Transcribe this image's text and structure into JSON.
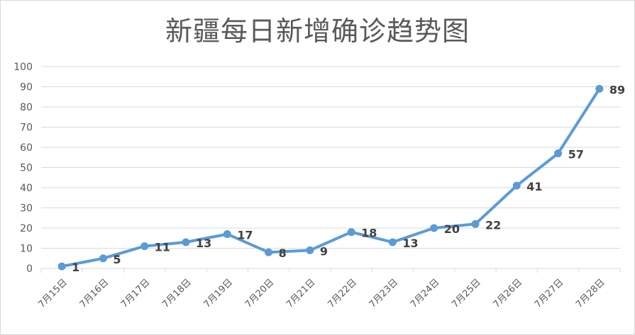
{
  "chart_data": {
    "type": "line",
    "title": "新疆每日新增确诊趋势图",
    "xlabel": "",
    "ylabel": "",
    "categories": [
      "7月15日",
      "7月16日",
      "7月17日",
      "7月18日",
      "7月19日",
      "7月20日",
      "7月21日",
      "7月22日",
      "7月23日",
      "7月24日",
      "7月25日",
      "7月26日",
      "7月27日",
      "7月28日"
    ],
    "series": [
      {
        "values": [
          1,
          5,
          11,
          13,
          17,
          8,
          9,
          18,
          13,
          20,
          22,
          41,
          57,
          89
        ]
      }
    ],
    "ylim": [
      0,
      100
    ],
    "yticks": [
      "0",
      "10",
      "20",
      "30",
      "40",
      "50",
      "60",
      "70",
      "80",
      "90",
      "100"
    ],
    "grid": true,
    "legend": "none",
    "colors": {
      "series": "#5b9bd5",
      "grid": "#d9d9d9",
      "text": "#595959"
    }
  }
}
